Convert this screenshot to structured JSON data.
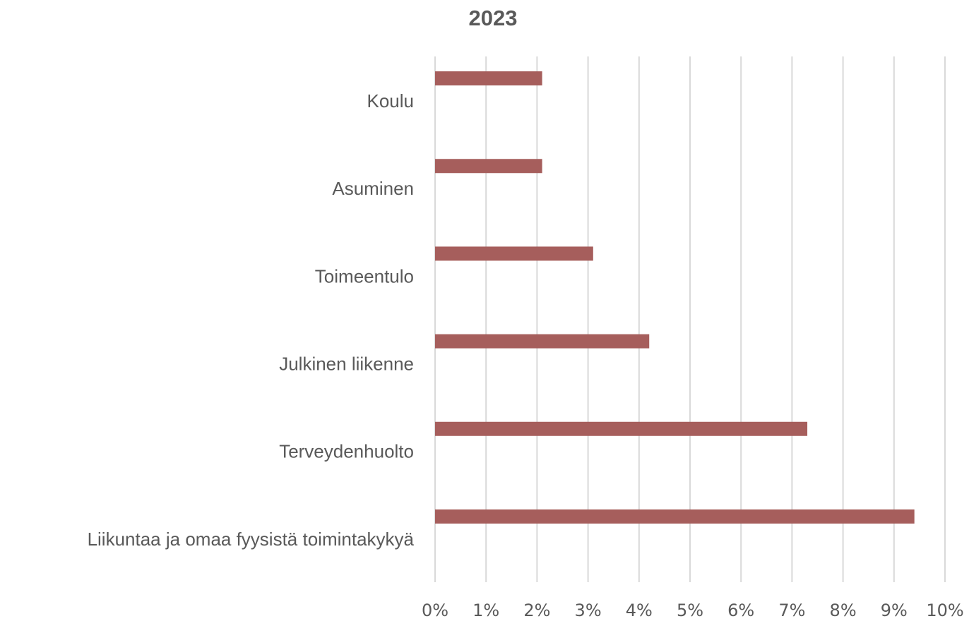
{
  "chart_data": {
    "type": "bar",
    "orientation": "horizontal",
    "title": "2023",
    "categories": [
      "Koulu",
      "Asuminen",
      "Toimeentulo",
      "Julkinen liikenne",
      "Terveydenhuolto",
      "Liikuntaa ja omaa fyysistä toimintakykyä"
    ],
    "values": [
      2.1,
      2.1,
      3.1,
      4.2,
      7.3,
      9.4
    ],
    "color": "#a65e5c",
    "xlim": [
      0,
      10
    ],
    "xticks": [
      {
        "value": 0,
        "label": "0%"
      },
      {
        "value": 1,
        "label": "1%"
      },
      {
        "value": 2,
        "label": "2%"
      },
      {
        "value": 3,
        "label": "3%"
      },
      {
        "value": 4,
        "label": "4%"
      },
      {
        "value": 5,
        "label": "5%"
      },
      {
        "value": 6,
        "label": "6%"
      },
      {
        "value": 7,
        "label": "7%"
      },
      {
        "value": 8,
        "label": "8%"
      },
      {
        "value": 9,
        "label": "9%"
      },
      {
        "value": 10,
        "label": "10%"
      }
    ],
    "grid": true
  }
}
